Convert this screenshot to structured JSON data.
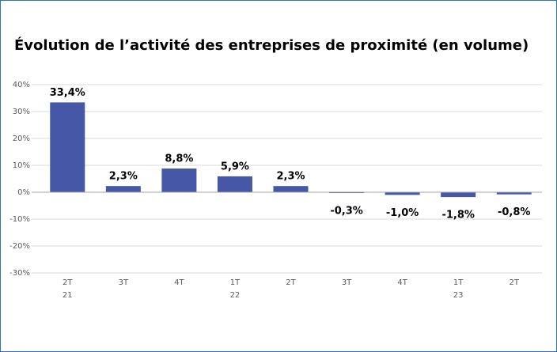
{
  "chart_data": {
    "type": "bar",
    "title": "Évolution de l’activité des entreprises de proximité (en volume)",
    "categories": [
      [
        "2T",
        "21"
      ],
      [
        "3T"
      ],
      [
        "4T"
      ],
      [
        "1T",
        "22"
      ],
      [
        "2T"
      ],
      [
        "3T"
      ],
      [
        "4T"
      ],
      [
        "1T",
        "23"
      ],
      [
        "2T"
      ]
    ],
    "values": [
      33.4,
      2.3,
      8.8,
      5.9,
      2.3,
      -0.3,
      -1.0,
      -1.8,
      -0.8
    ],
    "value_labels": [
      "33,4%",
      "2,3%",
      "8,8%",
      "5,9%",
      "2,3%",
      "-0,3%",
      "-1,0%",
      "-1,8%",
      "-0,8%"
    ],
    "color": "#4657a8",
    "ylim": [
      -30,
      40
    ],
    "yticks": [
      {
        "value": 40,
        "label": "40%"
      },
      {
        "value": 30,
        "label": "30%"
      },
      {
        "value": 20,
        "label": "20%"
      },
      {
        "value": 10,
        "label": "10%"
      },
      {
        "value": 0,
        "label": "0%"
      },
      {
        "value": -10,
        "label": "-10%"
      },
      {
        "value": -20,
        "label": "-20%"
      },
      {
        "value": -30,
        "label": "-30%"
      }
    ],
    "grid": true
  }
}
